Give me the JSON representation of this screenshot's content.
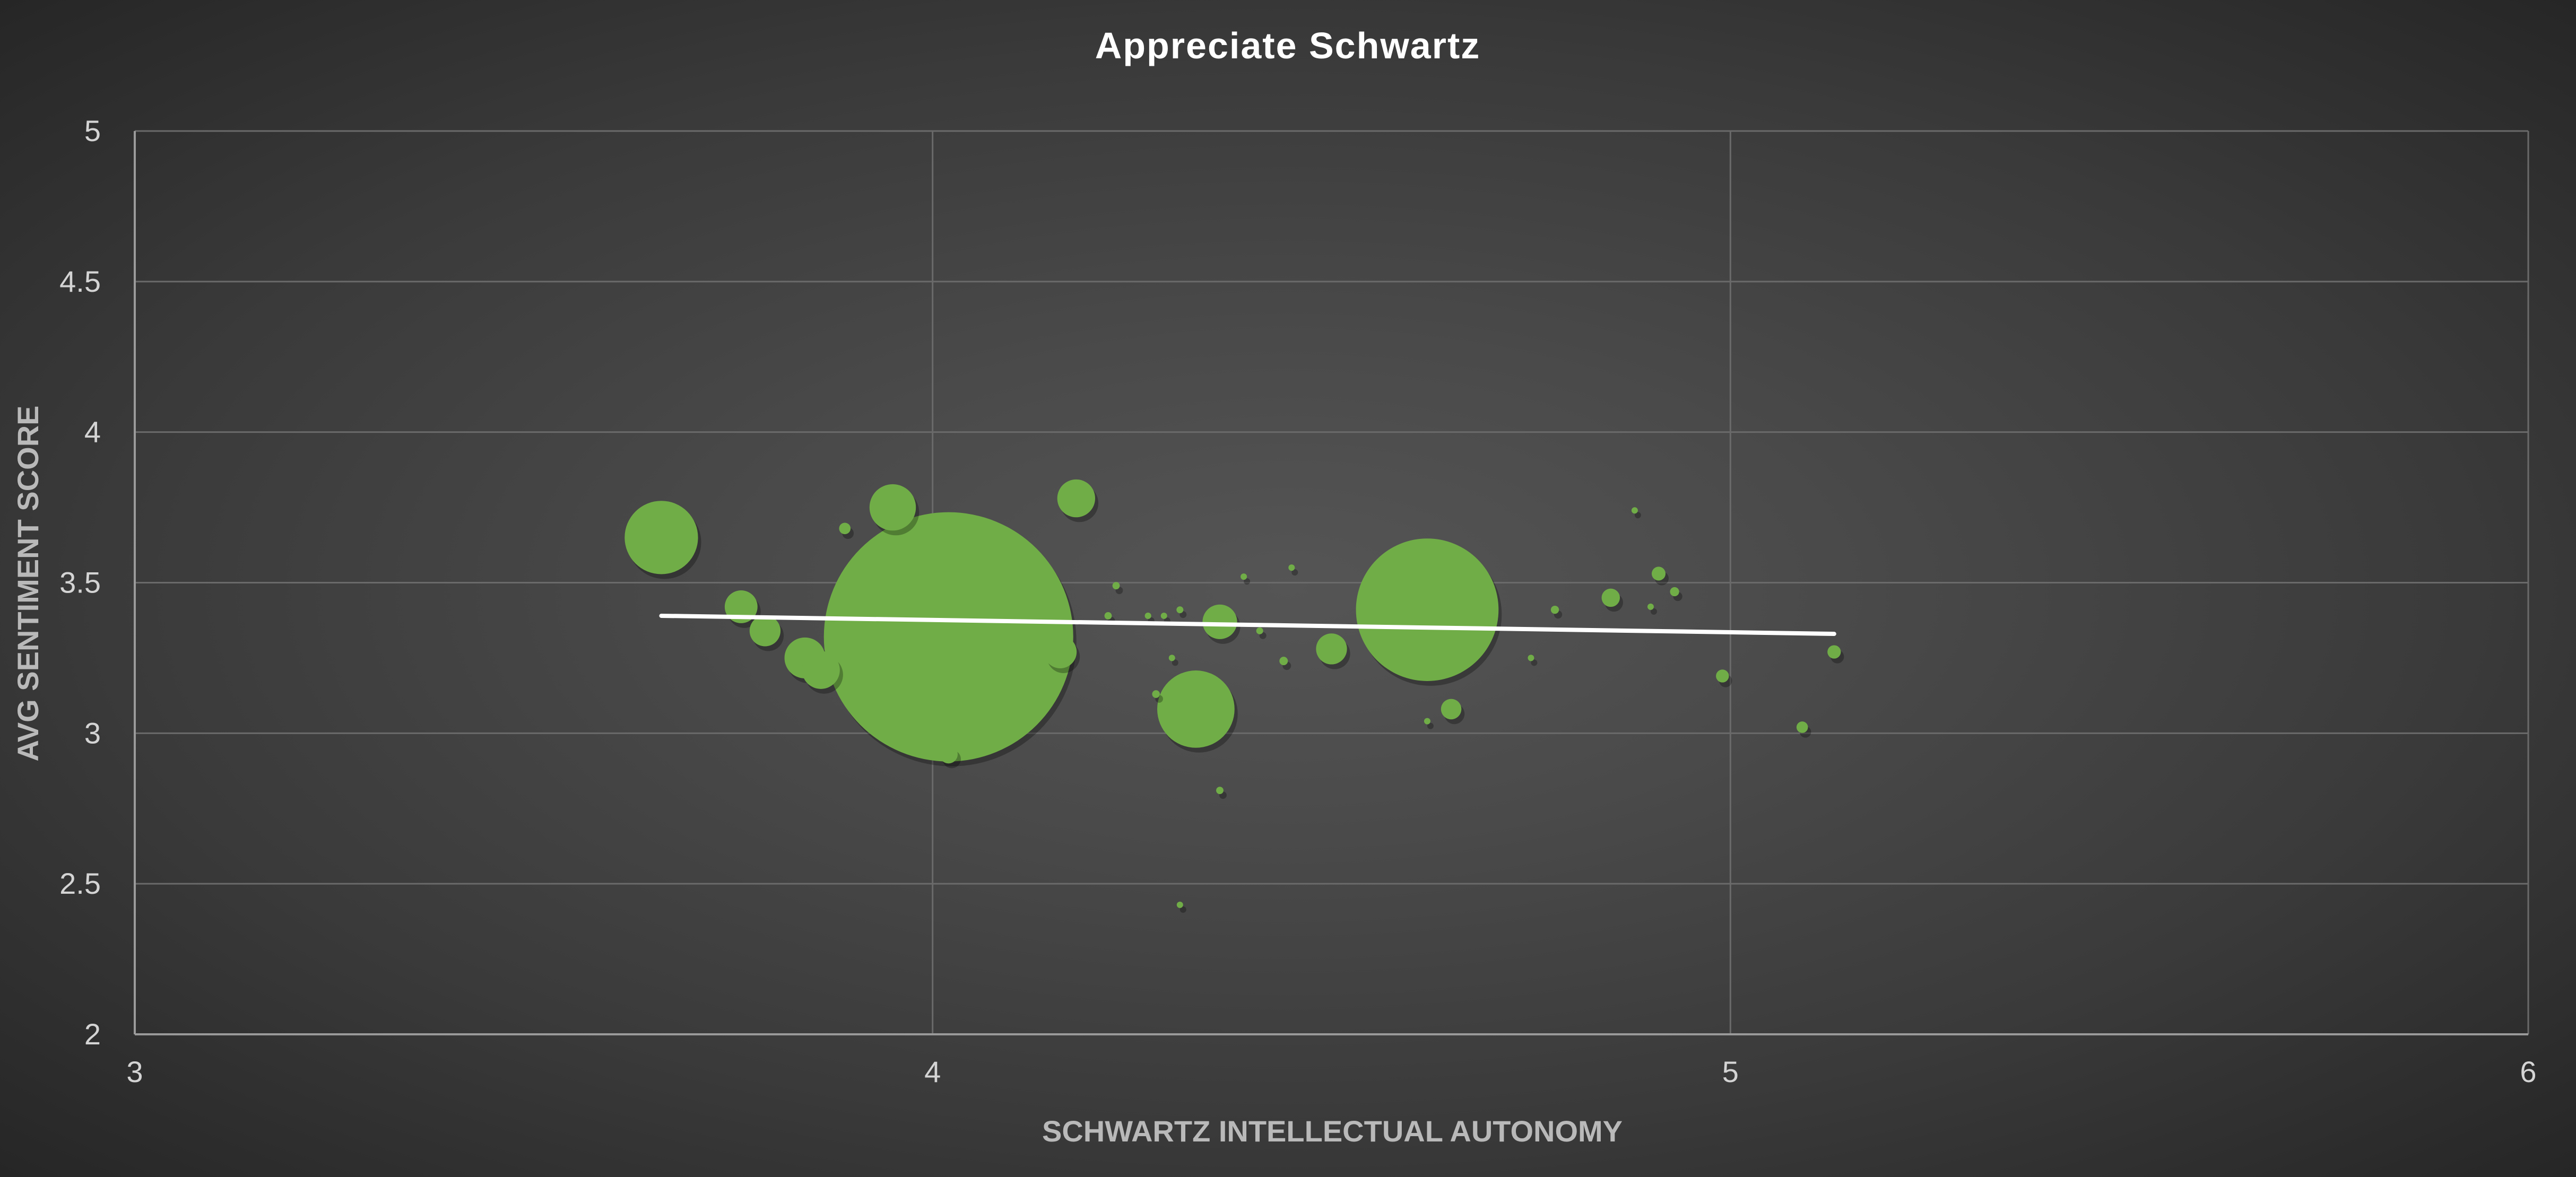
{
  "chart_data": {
    "type": "scatter",
    "title": "Appreciate Schwartz",
    "xlabel": "SCHWARTZ INTELLECTUAL AUTONOMY",
    "ylabel": "AVG SENTIMENT SCORE",
    "xlim": [
      3,
      6
    ],
    "ylim": [
      2,
      5
    ],
    "x_ticks": [
      "3",
      "4",
      "5",
      "6"
    ],
    "y_ticks": [
      "2",
      "2.5",
      "3",
      "3.5",
      "4",
      "4.5",
      "5"
    ],
    "grid": true,
    "legend": "none",
    "colors": {
      "bubble": "#70ad47",
      "trendline": "#ffffff"
    },
    "trendline": {
      "type": "linear",
      "x": [
        3.66,
        5.13
      ],
      "y": [
        3.39,
        3.33
      ]
    },
    "points": [
      {
        "x": 3.66,
        "y": 3.65,
        "size": 4500
      },
      {
        "x": 3.76,
        "y": 3.42,
        "size": 900
      },
      {
        "x": 3.79,
        "y": 3.34,
        "size": 800
      },
      {
        "x": 3.84,
        "y": 3.25,
        "size": 1400
      },
      {
        "x": 3.86,
        "y": 3.21,
        "size": 1200
      },
      {
        "x": 3.89,
        "y": 3.68,
        "size": 110
      },
      {
        "x": 3.95,
        "y": 3.75,
        "size": 1800
      },
      {
        "x": 4.02,
        "y": 3.32,
        "size": 52000
      },
      {
        "x": 4.02,
        "y": 2.93,
        "size": 280
      },
      {
        "x": 4.16,
        "y": 3.27,
        "size": 900
      },
      {
        "x": 4.18,
        "y": 3.78,
        "size": 1200
      },
      {
        "x": 4.22,
        "y": 3.39,
        "size": 45
      },
      {
        "x": 4.23,
        "y": 3.49,
        "size": 45
      },
      {
        "x": 4.27,
        "y": 3.39,
        "size": 35
      },
      {
        "x": 4.29,
        "y": 3.39,
        "size": 25
      },
      {
        "x": 4.28,
        "y": 3.13,
        "size": 50
      },
      {
        "x": 4.31,
        "y": 3.41,
        "size": 40
      },
      {
        "x": 4.3,
        "y": 3.25,
        "size": 25
      },
      {
        "x": 4.33,
        "y": 3.08,
        "size": 5000
      },
      {
        "x": 4.36,
        "y": 3.37,
        "size": 1000
      },
      {
        "x": 4.36,
        "y": 2.81,
        "size": 45
      },
      {
        "x": 4.39,
        "y": 3.52,
        "size": 30
      },
      {
        "x": 4.41,
        "y": 3.34,
        "size": 40
      },
      {
        "x": 4.44,
        "y": 3.24,
        "size": 60
      },
      {
        "x": 4.45,
        "y": 3.55,
        "size": 15
      },
      {
        "x": 4.31,
        "y": 2.43,
        "size": 6
      },
      {
        "x": 4.5,
        "y": 3.28,
        "size": 800
      },
      {
        "x": 4.62,
        "y": 3.41,
        "size": 17000
      },
      {
        "x": 4.62,
        "y": 3.04,
        "size": 30
      },
      {
        "x": 4.65,
        "y": 3.08,
        "size": 350
      },
      {
        "x": 4.75,
        "y": 3.25,
        "size": 25
      },
      {
        "x": 4.78,
        "y": 3.41,
        "size": 55
      },
      {
        "x": 4.85,
        "y": 3.45,
        "size": 280
      },
      {
        "x": 4.88,
        "y": 3.74,
        "size": 18
      },
      {
        "x": 4.9,
        "y": 3.42,
        "size": 25
      },
      {
        "x": 4.91,
        "y": 3.53,
        "size": 160
      },
      {
        "x": 4.93,
        "y": 3.47,
        "size": 70
      },
      {
        "x": 4.99,
        "y": 3.19,
        "size": 140
      },
      {
        "x": 5.09,
        "y": 3.02,
        "size": 110
      },
      {
        "x": 5.13,
        "y": 3.27,
        "size": 150
      }
    ]
  }
}
